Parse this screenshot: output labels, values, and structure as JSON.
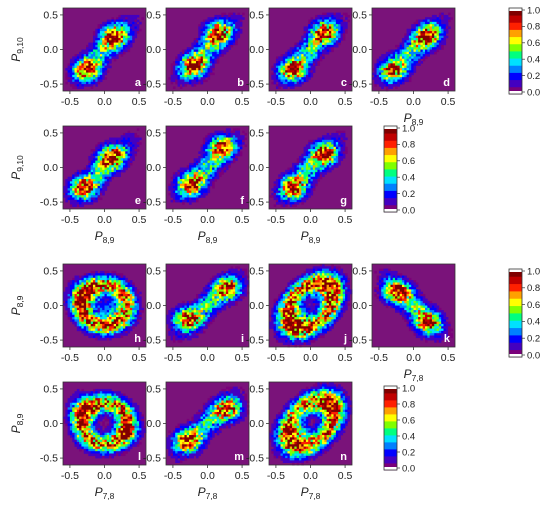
{
  "colorbar": {
    "ticks": [
      "1.0",
      "0.8",
      "0.6",
      "0.4",
      "0.2",
      "0.0"
    ],
    "colors": [
      "#7a007a",
      "#4400c0",
      "#0000ff",
      "#0080ff",
      "#00e0ff",
      "#00ff80",
      "#80ff00",
      "#ffff00",
      "#ffa000",
      "#ff2000",
      "#c00000",
      "#800000"
    ],
    "background": "#7a137a"
  },
  "chart_data": [
    {
      "type": "heatmap",
      "panel": "a",
      "xlim": [
        -0.6,
        0.6
      ],
      "ylim": [
        -0.6,
        0.6
      ],
      "xticks": [
        "-0.5",
        "0.0",
        "0.5"
      ],
      "yticks": [
        "0.5",
        "0.0",
        "-0.5"
      ],
      "xlabel": "",
      "xlabel_sub": "",
      "ylabel": "P",
      "ylabel_sub": "9,10",
      "pattern": "bimodal-diagonal",
      "mode1": [
        -0.25,
        -0.3
      ],
      "mode2": [
        0.15,
        0.2
      ]
    },
    {
      "type": "heatmap",
      "panel": "b",
      "xlim": [
        -0.6,
        0.6
      ],
      "ylim": [
        -0.6,
        0.6
      ],
      "xticks": [
        "-0.5",
        "0.0",
        "0.5"
      ],
      "yticks": [
        "0.5",
        "0.0",
        "-0.5"
      ],
      "xlabel": "",
      "xlabel_sub": "",
      "ylabel": "",
      "ylabel_sub": "",
      "pattern": "bimodal-diagonal",
      "mode1": [
        -0.2,
        -0.25
      ],
      "mode2": [
        0.15,
        0.25
      ]
    },
    {
      "type": "heatmap",
      "panel": "c",
      "xlim": [
        -0.6,
        0.6
      ],
      "ylim": [
        -0.6,
        0.6
      ],
      "xticks": [
        "-0.5",
        "0.0",
        "0.5"
      ],
      "yticks": [
        "0.5",
        "0.0",
        "-0.5"
      ],
      "xlabel": "",
      "xlabel_sub": "",
      "ylabel": "",
      "ylabel_sub": "",
      "pattern": "bimodal-diagonal",
      "mode1": [
        -0.25,
        -0.3
      ],
      "mode2": [
        0.2,
        0.25
      ]
    },
    {
      "type": "heatmap",
      "panel": "d",
      "xlim": [
        -0.6,
        0.6
      ],
      "ylim": [
        -0.6,
        0.6
      ],
      "xticks": [
        "-0.5",
        "0.0",
        "0.5"
      ],
      "yticks": [
        "0.5",
        "0.0",
        "-0.5"
      ],
      "xlabel": "P",
      "xlabel_sub": "8,9",
      "ylabel": "",
      "ylabel_sub": "",
      "pattern": "bimodal-diagonal",
      "mode1": [
        -0.3,
        -0.3
      ],
      "mode2": [
        0.2,
        0.2
      ]
    },
    {
      "type": "heatmap",
      "panel": "e",
      "xlim": [
        -0.6,
        0.6
      ],
      "ylim": [
        -0.6,
        0.6
      ],
      "xticks": [
        "-0.5",
        "0.0",
        "0.5"
      ],
      "yticks": [
        "0.5",
        "0.0",
        "-0.5"
      ],
      "xlabel": "P",
      "xlabel_sub": "8,9",
      "ylabel": "P",
      "ylabel_sub": "9,10",
      "pattern": "bimodal-diagonal",
      "mode1": [
        -0.3,
        -0.3
      ],
      "mode2": [
        0.1,
        0.15
      ]
    },
    {
      "type": "heatmap",
      "panel": "f",
      "xlim": [
        -0.6,
        0.6
      ],
      "ylim": [
        -0.6,
        0.6
      ],
      "xticks": [
        "-0.5",
        "0.0",
        "0.5"
      ],
      "yticks": [
        "0.5",
        "0.0",
        "-0.5"
      ],
      "xlabel": "P",
      "xlabel_sub": "8,9",
      "ylabel": "",
      "ylabel_sub": "",
      "pattern": "bimodal-diagonal",
      "mode1": [
        -0.25,
        -0.25
      ],
      "mode2": [
        0.2,
        0.3
      ]
    },
    {
      "type": "heatmap",
      "panel": "g",
      "xlim": [
        -0.6,
        0.6
      ],
      "ylim": [
        -0.6,
        0.6
      ],
      "xticks": [
        "-0.5",
        "0.0",
        "0.5"
      ],
      "yticks": [
        "0.5",
        "0.0",
        "-0.5"
      ],
      "xlabel": "P",
      "xlabel_sub": "8,9",
      "ylabel": "",
      "ylabel_sub": "",
      "pattern": "bimodal-diagonal",
      "mode1": [
        -0.25,
        -0.3
      ],
      "mode2": [
        0.2,
        0.2
      ]
    },
    {
      "type": "heatmap",
      "panel": "h",
      "xlim": [
        -0.6,
        0.6
      ],
      "ylim": [
        -0.6,
        0.6
      ],
      "xticks": [
        "-0.5",
        "0.0",
        "0.5"
      ],
      "yticks": [
        "0.5",
        "0.0",
        "-0.5"
      ],
      "xlabel": "",
      "xlabel_sub": "",
      "ylabel": "P",
      "ylabel_sub": "8,9",
      "pattern": "ring",
      "mode1": [
        -0.3,
        0.15
      ],
      "mode2": [
        0.1,
        -0.1
      ]
    },
    {
      "type": "heatmap",
      "panel": "i",
      "xlim": [
        -0.6,
        0.6
      ],
      "ylim": [
        -0.6,
        0.6
      ],
      "xticks": [
        "-0.5",
        "0.0",
        "0.5"
      ],
      "yticks": [
        "0.5",
        "0.0",
        "-0.5"
      ],
      "xlabel": "",
      "xlabel_sub": "",
      "ylabel": "",
      "ylabel_sub": "",
      "pattern": "bimodal-diagonal",
      "mode1": [
        -0.3,
        -0.2
      ],
      "mode2": [
        0.3,
        0.25
      ]
    },
    {
      "type": "heatmap",
      "panel": "j",
      "xlim": [
        -0.6,
        0.6
      ],
      "ylim": [
        -0.6,
        0.6
      ],
      "xticks": [
        "-0.5",
        "0.0",
        "0.5"
      ],
      "yticks": [
        "0.5",
        "0.0",
        "-0.5"
      ],
      "xlabel": "",
      "xlabel_sub": "",
      "ylabel": "",
      "ylabel_sub": "",
      "pattern": "ring-diagonal",
      "mode1": [
        -0.2,
        -0.2
      ],
      "mode2": [
        0.2,
        0.2
      ]
    },
    {
      "type": "heatmap",
      "panel": "k",
      "xlim": [
        -0.6,
        0.6
      ],
      "ylim": [
        -0.6,
        0.6
      ],
      "xticks": [
        "-0.5",
        "0.0",
        "0.5"
      ],
      "yticks": [
        "0.5",
        "0.0",
        "-0.5"
      ],
      "xlabel": "P",
      "xlabel_sub": "7,8",
      "ylabel": "",
      "ylabel_sub": "",
      "pattern": "bimodal-antidiagonal",
      "mode1": [
        -0.25,
        0.2
      ],
      "mode2": [
        0.2,
        -0.25
      ]
    },
    {
      "type": "heatmap",
      "panel": "l",
      "xlim": [
        -0.6,
        0.6
      ],
      "ylim": [
        -0.6,
        0.6
      ],
      "xticks": [
        "-0.5",
        "0.0",
        "0.5"
      ],
      "yticks": [
        "0.5",
        "0.0",
        "-0.5"
      ],
      "xlabel": "P",
      "xlabel_sub": "7,8",
      "ylabel": "P",
      "ylabel_sub": "8,9",
      "pattern": "ring",
      "mode1": [
        -0.3,
        0.2
      ],
      "mode2": [
        0.3,
        -0.1
      ]
    },
    {
      "type": "heatmap",
      "panel": "m",
      "xlim": [
        -0.6,
        0.6
      ],
      "ylim": [
        -0.6,
        0.6
      ],
      "xticks": [
        "-0.5",
        "0.0",
        "0.5"
      ],
      "yticks": [
        "0.5",
        "0.0",
        "-0.5"
      ],
      "xlabel": "P",
      "xlabel_sub": "7,8",
      "ylabel": "",
      "ylabel_sub": "",
      "pattern": "bimodal-diagonal",
      "mode1": [
        -0.3,
        -0.25
      ],
      "mode2": [
        0.3,
        0.2
      ]
    },
    {
      "type": "heatmap",
      "panel": "n",
      "xlim": [
        -0.6,
        0.6
      ],
      "ylim": [
        -0.6,
        0.6
      ],
      "xticks": [
        "-0.5",
        "0.0",
        "0.5"
      ],
      "yticks": [
        "0.5",
        "0.0",
        "-0.5"
      ],
      "xlabel": "P",
      "xlabel_sub": "7,8",
      "ylabel": "",
      "ylabel_sub": "",
      "pattern": "ring-diagonal",
      "mode1": [
        -0.2,
        -0.15
      ],
      "mode2": [
        0.25,
        0.25
      ]
    }
  ]
}
